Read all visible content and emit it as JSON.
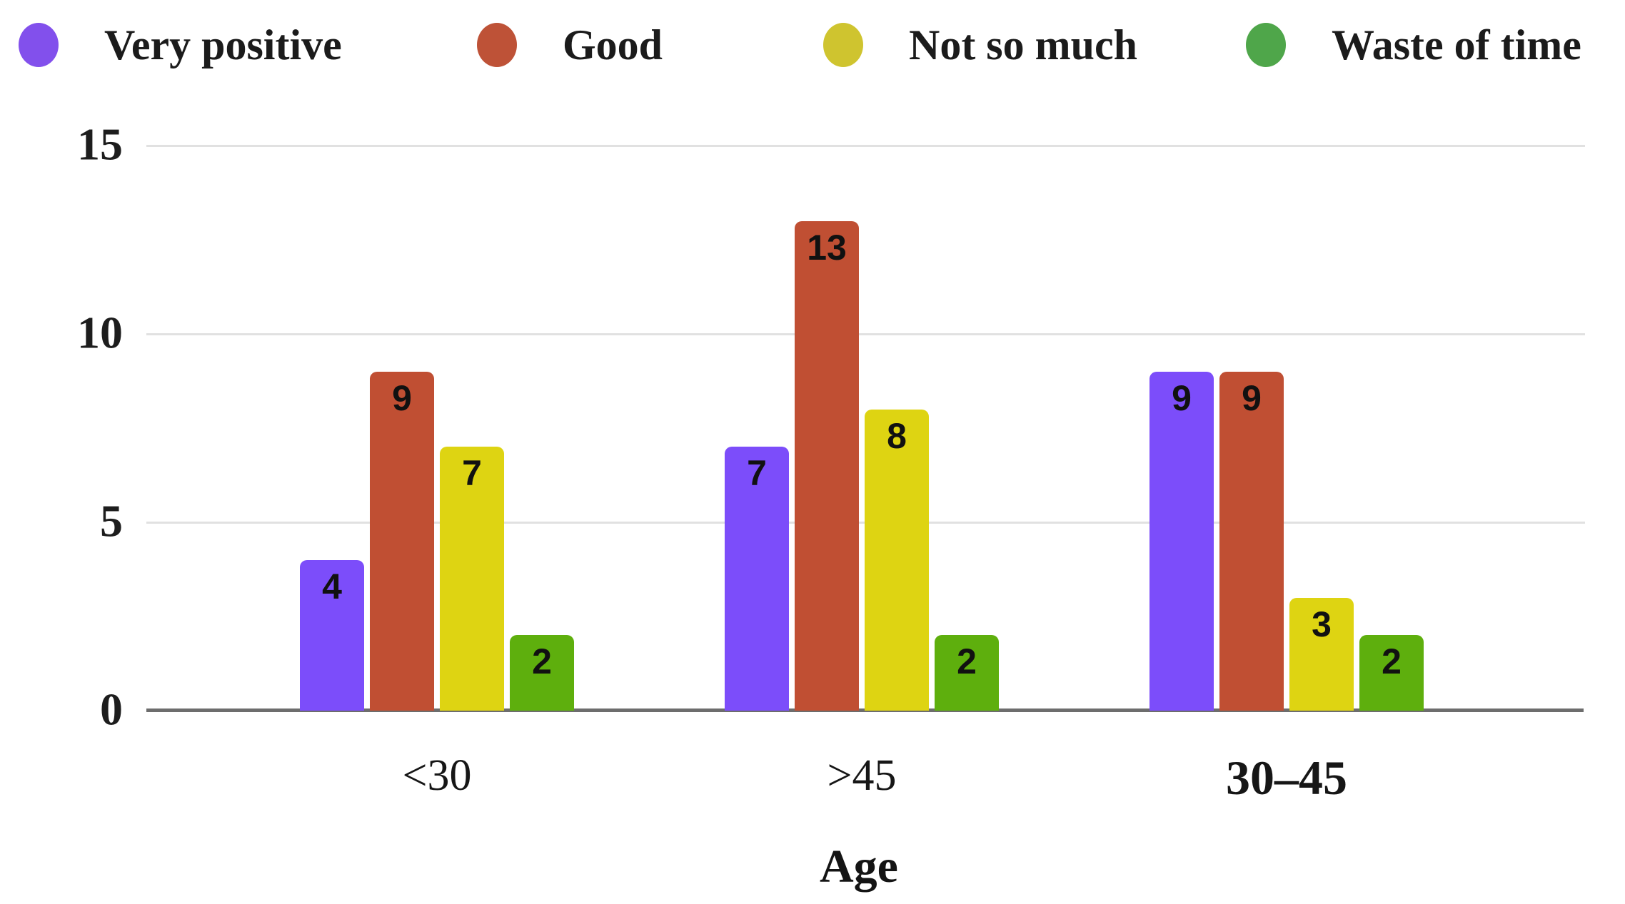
{
  "chart_data": {
    "type": "bar",
    "title": "",
    "xlabel": "Age",
    "ylabel": "",
    "categories": [
      "<30",
      ">45",
      "30–45"
    ],
    "series": [
      {
        "name": "Very positive",
        "color": "#7C4DFA",
        "legend_color": "#8250EC",
        "values": [
          4,
          7,
          9
        ]
      },
      {
        "name": "Good",
        "color": "#C04F33",
        "legend_color": "#BE5237",
        "values": [
          9,
          13,
          9
        ]
      },
      {
        "name": "Not so much",
        "color": "#DED412",
        "legend_color": "#CFC42F",
        "values": [
          7,
          8,
          3
        ]
      },
      {
        "name": "Waste of time",
        "color": "#5EAF0D",
        "legend_color": "#4FA64A",
        "values": [
          2,
          2,
          2
        ]
      }
    ],
    "bar_labels": true,
    "ylim": [
      0,
      15
    ],
    "yticks": [
      0,
      5,
      10,
      15
    ],
    "grid": "horizontal",
    "legend_position": "top",
    "background": "#ffffff",
    "gridline_color": "#e1e1e1",
    "axis_line_color": "#6d6d6d",
    "text_color": "#1a1a1a"
  }
}
